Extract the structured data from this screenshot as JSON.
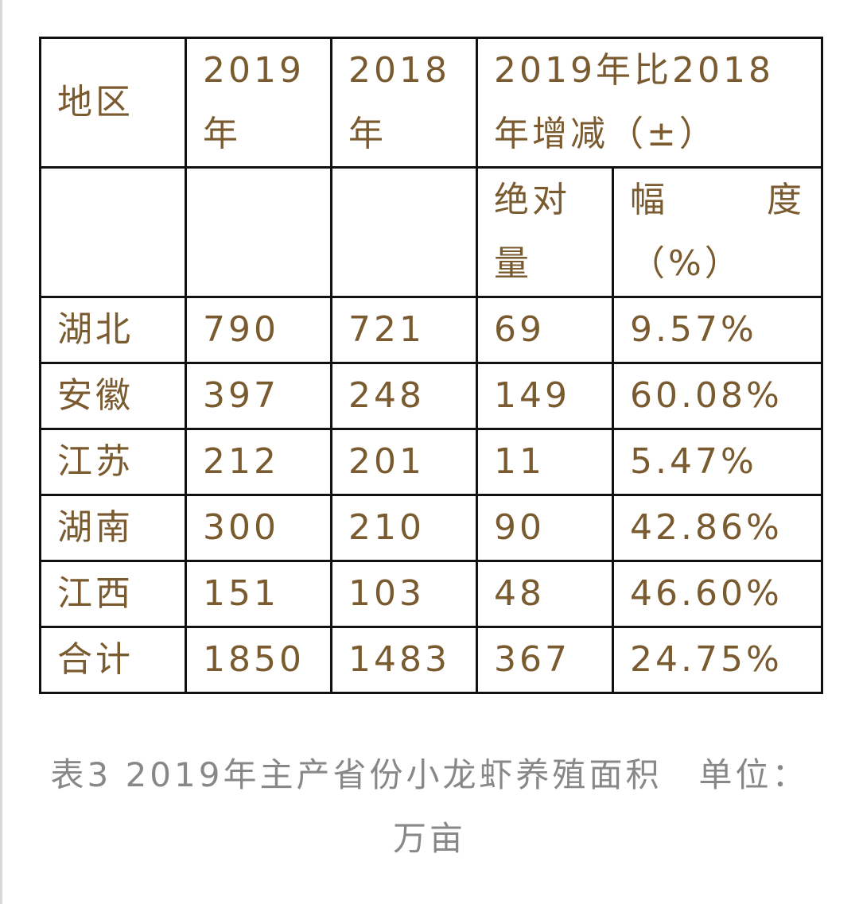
{
  "table": {
    "headers": {
      "region": "地区",
      "year_2019": "2019年",
      "year_2018": "2018年",
      "change": "2019年比2018年增减（±）",
      "absolute": "绝对量",
      "rate_label": "幅",
      "rate_label_2": "度",
      "rate_unit": "（%）"
    },
    "rows": [
      {
        "region": "湖北",
        "y2019": "790",
        "y2018": "721",
        "abs": "69",
        "pct": "9.57%"
      },
      {
        "region": "安徽",
        "y2019": "397",
        "y2018": "248",
        "abs": "149",
        "pct": "60.08%"
      },
      {
        "region": "江苏",
        "y2019": "212",
        "y2018": "201",
        "abs": "11",
        "pct": "5.47%"
      },
      {
        "region": "湖南",
        "y2019": "300",
        "y2018": "210",
        "abs": "90",
        "pct": "42.86%"
      },
      {
        "region": "江西",
        "y2019": "151",
        "y2018": "103",
        "abs": "48",
        "pct": "46.60%"
      },
      {
        "region": "合计",
        "y2019": "1850",
        "y2018": "1483",
        "abs": "367",
        "pct": "24.75%"
      }
    ]
  },
  "caption": "表3 2019年主产省份小龙虾养殖面积　单位：万亩",
  "colors": {
    "cell_text": "#7a5a2f",
    "caption_text": "#888888",
    "border": "#111111"
  }
}
